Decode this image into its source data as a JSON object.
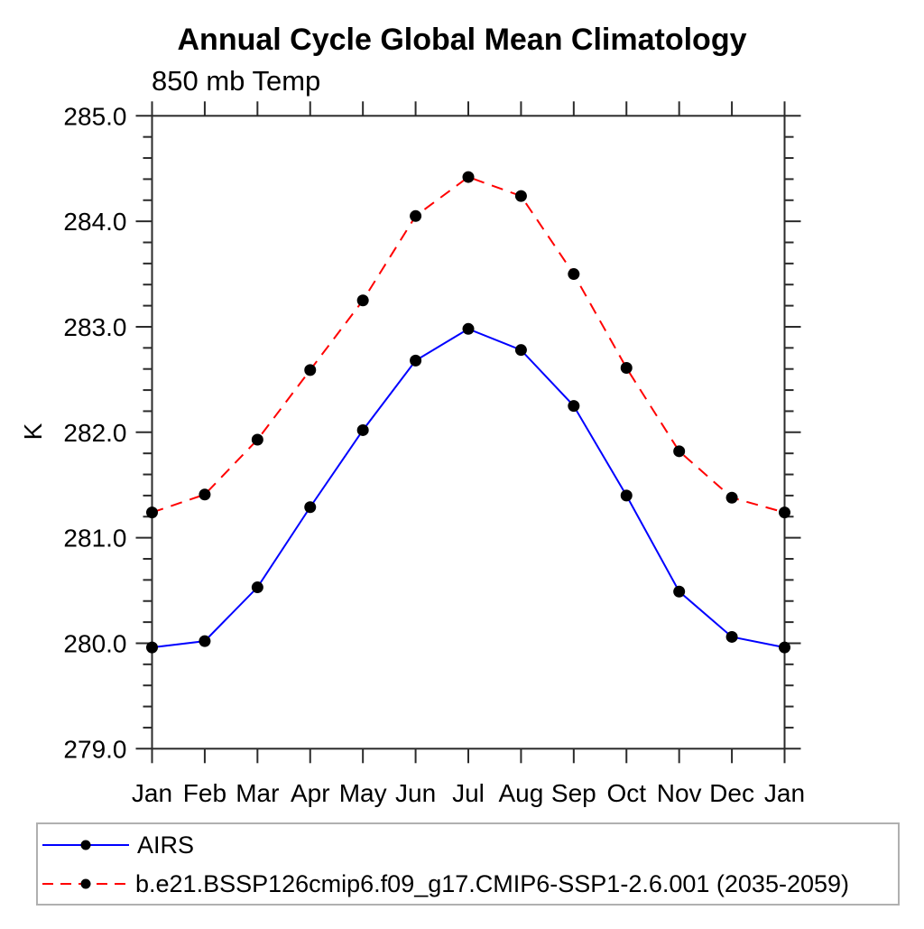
{
  "header": {
    "title": "Annual Cycle Global Mean Climatology",
    "subtitle": "850 mb Temp"
  },
  "chart_data": {
    "type": "line",
    "title": "Annual Cycle Global Mean Climatology",
    "subtitle": "850 mb Temp",
    "xlabel": "",
    "ylabel": "K",
    "ylim": [
      279.0,
      285.0
    ],
    "ytick_step": 1.0,
    "yminor_step": 0.2,
    "ytick_labels": [
      "279.0",
      "280.0",
      "281.0",
      "282.0",
      "283.0",
      "284.0",
      "285.0"
    ],
    "categories": [
      "Jan",
      "Feb",
      "Mar",
      "Apr",
      "May",
      "Jun",
      "Jul",
      "Aug",
      "Sep",
      "Oct",
      "Nov",
      "Dec",
      "Jan"
    ],
    "grid": false,
    "legend_position": "bottom",
    "axis_color": "#2b2b2b",
    "legend_border_color": "#b0b0b0",
    "marker_color": "#000000",
    "series": [
      {
        "name": "AIRS",
        "color": "#0000ff",
        "style": "solid",
        "marker": "circle",
        "values": [
          279.96,
          280.02,
          280.53,
          281.29,
          282.02,
          282.68,
          282.98,
          282.78,
          282.25,
          281.4,
          280.49,
          280.06,
          279.96
        ]
      },
      {
        "name": "b.e21.BSSP126cmip6.f09_g17.CMIP6-SSP1-2.6.001 (2035-2059)",
        "color": "#ff0000",
        "style": "dashed",
        "marker": "circle",
        "values": [
          281.24,
          281.41,
          281.93,
          282.59,
          283.25,
          284.05,
          284.42,
          284.24,
          283.5,
          282.61,
          281.82,
          281.38,
          281.24
        ]
      }
    ]
  }
}
